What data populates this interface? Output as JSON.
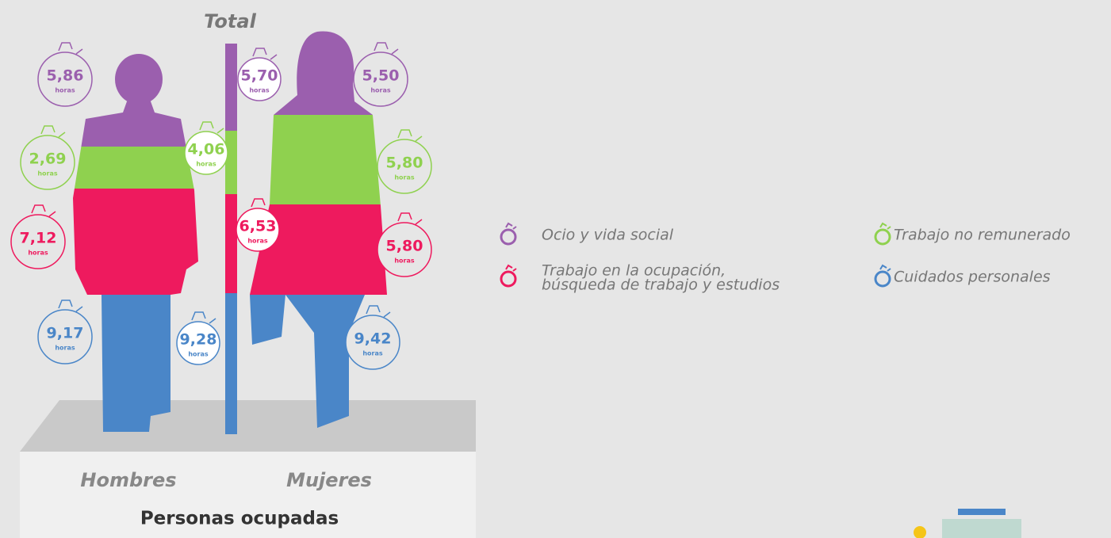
{
  "header": {
    "title": "Total"
  },
  "unit": "horas",
  "groups": [
    {
      "label": "Hombres",
      "values": [
        "5,86",
        "2,69",
        "7,12",
        "9,17"
      ]
    },
    {
      "label": "Total",
      "values": [
        "5,70",
        "4,06",
        "6,53",
        "9,28"
      ]
    },
    {
      "label": "Mujeres",
      "values": [
        "5,50",
        "5,80",
        "5,80",
        "9,42"
      ]
    }
  ],
  "legend": [
    {
      "lines": [
        "Ocio y vida social"
      ],
      "color": "#9b5fae"
    },
    {
      "lines": [
        "Trabajo no remunerado"
      ],
      "color": "#8fd14f"
    },
    {
      "lines": [
        "Trabajo en la ocupación,",
        "búsqueda de trabajo y estudios"
      ],
      "color": "#ee1a5e"
    },
    {
      "lines": [
        "Cuidados personales"
      ],
      "color": "#4a86c8"
    }
  ],
  "footer": {
    "subtitle": "Personas ocupadas"
  }
}
